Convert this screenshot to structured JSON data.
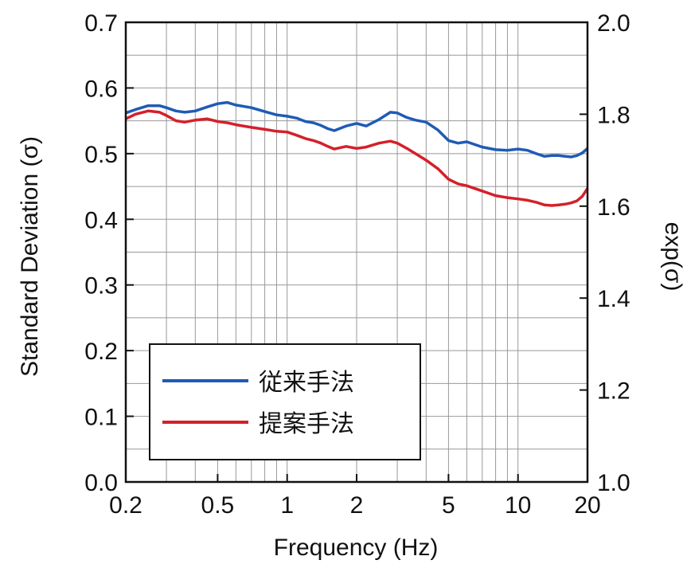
{
  "chart_data": {
    "type": "line",
    "xlabel": "Frequency (Hz)",
    "ylabel": "Standard Deviation (σ)",
    "y2label": "exp(σ)",
    "x_scale": "log",
    "xlim": [
      0.2,
      20
    ],
    "ylim": [
      0.0,
      0.7
    ],
    "y2lim": [
      1.0,
      2.0
    ],
    "grid": true,
    "legend_position": "bottom-left",
    "x_ticks": [
      0.2,
      0.5,
      1,
      2,
      5,
      10,
      20
    ],
    "x_tick_labels": [
      "0.2",
      "0.5",
      "1",
      "2",
      "5",
      "10",
      "20"
    ],
    "y_ticks": [
      0.0,
      0.1,
      0.2,
      0.3,
      0.4,
      0.5,
      0.6,
      0.7
    ],
    "y_tick_labels": [
      "0.0",
      "0.1",
      "0.2",
      "0.3",
      "0.4",
      "0.5",
      "0.6",
      "0.7"
    ],
    "y2_ticks": [
      1.0,
      1.2,
      1.4,
      1.6,
      1.8,
      2.0
    ],
    "y2_tick_labels": [
      "1.0",
      "1.2",
      "1.4",
      "1.6",
      "1.8",
      "2.0"
    ],
    "series": [
      {
        "name": "従来手法",
        "color": "#1f5bb5",
        "x": [
          0.2,
          0.22,
          0.25,
          0.28,
          0.3,
          0.33,
          0.36,
          0.4,
          0.45,
          0.5,
          0.55,
          0.6,
          0.7,
          0.8,
          0.9,
          1.0,
          1.1,
          1.2,
          1.3,
          1.4,
          1.5,
          1.6,
          1.8,
          2.0,
          2.2,
          2.5,
          2.8,
          3.0,
          3.3,
          3.6,
          4.0,
          4.5,
          5.0,
          5.5,
          6.0,
          7.0,
          8.0,
          9.0,
          10,
          11,
          12,
          13,
          14,
          15,
          16,
          17,
          18,
          19,
          20
        ],
        "y": [
          0.562,
          0.567,
          0.573,
          0.573,
          0.57,
          0.565,
          0.563,
          0.565,
          0.571,
          0.576,
          0.578,
          0.574,
          0.57,
          0.564,
          0.559,
          0.557,
          0.554,
          0.549,
          0.547,
          0.543,
          0.538,
          0.535,
          0.542,
          0.546,
          0.542,
          0.552,
          0.563,
          0.562,
          0.555,
          0.551,
          0.548,
          0.536,
          0.52,
          0.516,
          0.518,
          0.51,
          0.506,
          0.505,
          0.507,
          0.505,
          0.5,
          0.496,
          0.497,
          0.497,
          0.496,
          0.495,
          0.497,
          0.501,
          0.508
        ]
      },
      {
        "name": "提案手法",
        "color": "#d4202a",
        "x": [
          0.2,
          0.22,
          0.25,
          0.28,
          0.3,
          0.33,
          0.36,
          0.4,
          0.45,
          0.5,
          0.55,
          0.6,
          0.7,
          0.8,
          0.9,
          1.0,
          1.1,
          1.2,
          1.3,
          1.4,
          1.5,
          1.6,
          1.8,
          2.0,
          2.2,
          2.5,
          2.8,
          3.0,
          3.3,
          3.6,
          4.0,
          4.5,
          5.0,
          5.5,
          6.0,
          7.0,
          8.0,
          9.0,
          10,
          11,
          12,
          13,
          14,
          15,
          16,
          17,
          18,
          19,
          20
        ],
        "y": [
          0.553,
          0.56,
          0.565,
          0.563,
          0.558,
          0.55,
          0.548,
          0.551,
          0.553,
          0.549,
          0.547,
          0.544,
          0.54,
          0.537,
          0.534,
          0.533,
          0.528,
          0.523,
          0.52,
          0.516,
          0.511,
          0.507,
          0.511,
          0.508,
          0.51,
          0.516,
          0.519,
          0.516,
          0.508,
          0.5,
          0.49,
          0.477,
          0.461,
          0.454,
          0.451,
          0.443,
          0.436,
          0.433,
          0.431,
          0.429,
          0.426,
          0.422,
          0.421,
          0.422,
          0.423,
          0.425,
          0.428,
          0.435,
          0.447
        ]
      }
    ]
  }
}
